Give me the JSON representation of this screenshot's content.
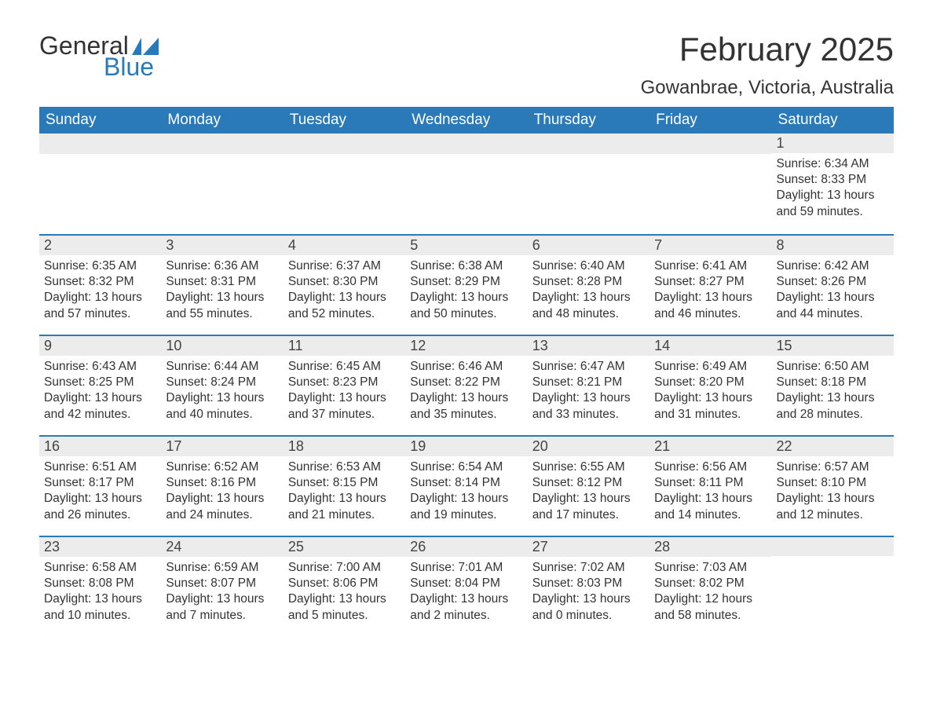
{
  "logo": {
    "word1": "General",
    "word2": "Blue"
  },
  "title": "February 2025",
  "location": "Gowanbrae, Victoria, Australia",
  "colors": {
    "header_bg": "#2a7ab9",
    "header_text": "#ffffff",
    "daynum_bg": "#ececec",
    "border": "#2a7ab9",
    "text": "#333333",
    "logo_accent": "#2a7ab9"
  },
  "day_headers": [
    "Sunday",
    "Monday",
    "Tuesday",
    "Wednesday",
    "Thursday",
    "Friday",
    "Saturday"
  ],
  "labels": {
    "sunrise": "Sunrise:",
    "sunset": "Sunset:",
    "daylight": "Daylight:"
  },
  "weeks": [
    [
      null,
      null,
      null,
      null,
      null,
      null,
      {
        "n": "1",
        "sunrise": "6:34 AM",
        "sunset": "8:33 PM",
        "daylight": "13 hours and 59 minutes."
      }
    ],
    [
      {
        "n": "2",
        "sunrise": "6:35 AM",
        "sunset": "8:32 PM",
        "daylight": "13 hours and 57 minutes."
      },
      {
        "n": "3",
        "sunrise": "6:36 AM",
        "sunset": "8:31 PM",
        "daylight": "13 hours and 55 minutes."
      },
      {
        "n": "4",
        "sunrise": "6:37 AM",
        "sunset": "8:30 PM",
        "daylight": "13 hours and 52 minutes."
      },
      {
        "n": "5",
        "sunrise": "6:38 AM",
        "sunset": "8:29 PM",
        "daylight": "13 hours and 50 minutes."
      },
      {
        "n": "6",
        "sunrise": "6:40 AM",
        "sunset": "8:28 PM",
        "daylight": "13 hours and 48 minutes."
      },
      {
        "n": "7",
        "sunrise": "6:41 AM",
        "sunset": "8:27 PM",
        "daylight": "13 hours and 46 minutes."
      },
      {
        "n": "8",
        "sunrise": "6:42 AM",
        "sunset": "8:26 PM",
        "daylight": "13 hours and 44 minutes."
      }
    ],
    [
      {
        "n": "9",
        "sunrise": "6:43 AM",
        "sunset": "8:25 PM",
        "daylight": "13 hours and 42 minutes."
      },
      {
        "n": "10",
        "sunrise": "6:44 AM",
        "sunset": "8:24 PM",
        "daylight": "13 hours and 40 minutes."
      },
      {
        "n": "11",
        "sunrise": "6:45 AM",
        "sunset": "8:23 PM",
        "daylight": "13 hours and 37 minutes."
      },
      {
        "n": "12",
        "sunrise": "6:46 AM",
        "sunset": "8:22 PM",
        "daylight": "13 hours and 35 minutes."
      },
      {
        "n": "13",
        "sunrise": "6:47 AM",
        "sunset": "8:21 PM",
        "daylight": "13 hours and 33 minutes."
      },
      {
        "n": "14",
        "sunrise": "6:49 AM",
        "sunset": "8:20 PM",
        "daylight": "13 hours and 31 minutes."
      },
      {
        "n": "15",
        "sunrise": "6:50 AM",
        "sunset": "8:18 PM",
        "daylight": "13 hours and 28 minutes."
      }
    ],
    [
      {
        "n": "16",
        "sunrise": "6:51 AM",
        "sunset": "8:17 PM",
        "daylight": "13 hours and 26 minutes."
      },
      {
        "n": "17",
        "sunrise": "6:52 AM",
        "sunset": "8:16 PM",
        "daylight": "13 hours and 24 minutes."
      },
      {
        "n": "18",
        "sunrise": "6:53 AM",
        "sunset": "8:15 PM",
        "daylight": "13 hours and 21 minutes."
      },
      {
        "n": "19",
        "sunrise": "6:54 AM",
        "sunset": "8:14 PM",
        "daylight": "13 hours and 19 minutes."
      },
      {
        "n": "20",
        "sunrise": "6:55 AM",
        "sunset": "8:12 PM",
        "daylight": "13 hours and 17 minutes."
      },
      {
        "n": "21",
        "sunrise": "6:56 AM",
        "sunset": "8:11 PM",
        "daylight": "13 hours and 14 minutes."
      },
      {
        "n": "22",
        "sunrise": "6:57 AM",
        "sunset": "8:10 PM",
        "daylight": "13 hours and 12 minutes."
      }
    ],
    [
      {
        "n": "23",
        "sunrise": "6:58 AM",
        "sunset": "8:08 PM",
        "daylight": "13 hours and 10 minutes."
      },
      {
        "n": "24",
        "sunrise": "6:59 AM",
        "sunset": "8:07 PM",
        "daylight": "13 hours and 7 minutes."
      },
      {
        "n": "25",
        "sunrise": "7:00 AM",
        "sunset": "8:06 PM",
        "daylight": "13 hours and 5 minutes."
      },
      {
        "n": "26",
        "sunrise": "7:01 AM",
        "sunset": "8:04 PM",
        "daylight": "13 hours and 2 minutes."
      },
      {
        "n": "27",
        "sunrise": "7:02 AM",
        "sunset": "8:03 PM",
        "daylight": "13 hours and 0 minutes."
      },
      {
        "n": "28",
        "sunrise": "7:03 AM",
        "sunset": "8:02 PM",
        "daylight": "12 hours and 58 minutes."
      },
      null
    ]
  ]
}
